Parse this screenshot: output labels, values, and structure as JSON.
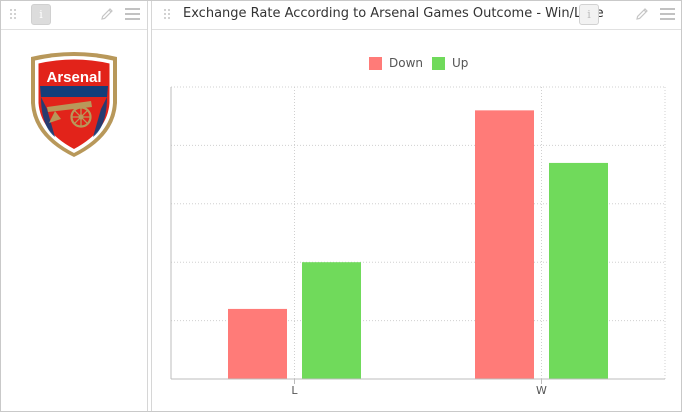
{
  "widgets": {
    "left": {
      "name": "Arsenal logo",
      "logo_text": "Arsenal"
    },
    "right": {
      "title": "Exchange Rate According to Arsenal Games Outcome - Win/Lose"
    }
  },
  "icons": {
    "drag": "drag-handle-icon",
    "info": "info-icon",
    "edit": "pencil-icon",
    "menu": "hamburger-menu-icon"
  },
  "colors": {
    "down": "#ff7b78",
    "up": "#70da5b",
    "grid": "#d0d0d0",
    "axis": "#bcbcbc"
  },
  "chart_data": {
    "type": "bar",
    "title": "Exchange Rate According to Arsenal Games Outcome - Win/Lose",
    "categories": [
      "L",
      "W"
    ],
    "series": [
      {
        "name": "Down",
        "values": [
          12,
          46
        ]
      },
      {
        "name": "Up",
        "values": [
          20,
          37
        ]
      }
    ],
    "ylim": [
      0,
      50
    ],
    "y_tick_labels_shown": false,
    "grid": true,
    "legend": "top-center"
  }
}
